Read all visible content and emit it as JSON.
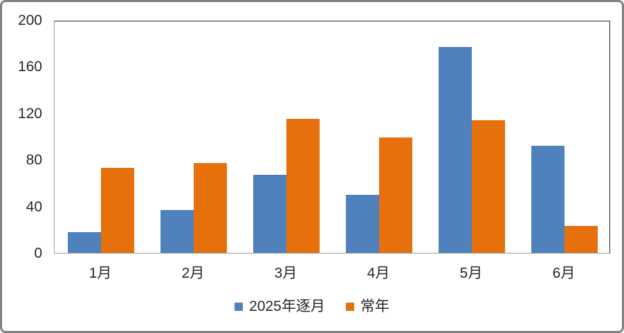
{
  "chart_data": {
    "type": "bar",
    "title": "",
    "categories": [
      "1月",
      "2月",
      "3月",
      "4月",
      "5月",
      "6月"
    ],
    "series": [
      {
        "name": "2025年逐月",
        "color": "#4F81BD",
        "values": [
          18,
          37,
          67,
          50,
          177,
          92
        ]
      },
      {
        "name": "常年",
        "color": "#E6700C",
        "values": [
          73,
          77,
          115,
          99,
          114,
          23
        ]
      }
    ],
    "xlabel": "",
    "ylabel": "",
    "ylim": [
      0,
      200
    ],
    "yticks": [
      0,
      40,
      80,
      120,
      160,
      200
    ],
    "grid": false,
    "legend_position": "bottom-center"
  },
  "style": {
    "text_color": "#262626",
    "axis_line_color": "#9c9c9c",
    "plot_border_color": "#262626",
    "outer_border_color": "#7f7f7f",
    "background": "#ffffff"
  }
}
